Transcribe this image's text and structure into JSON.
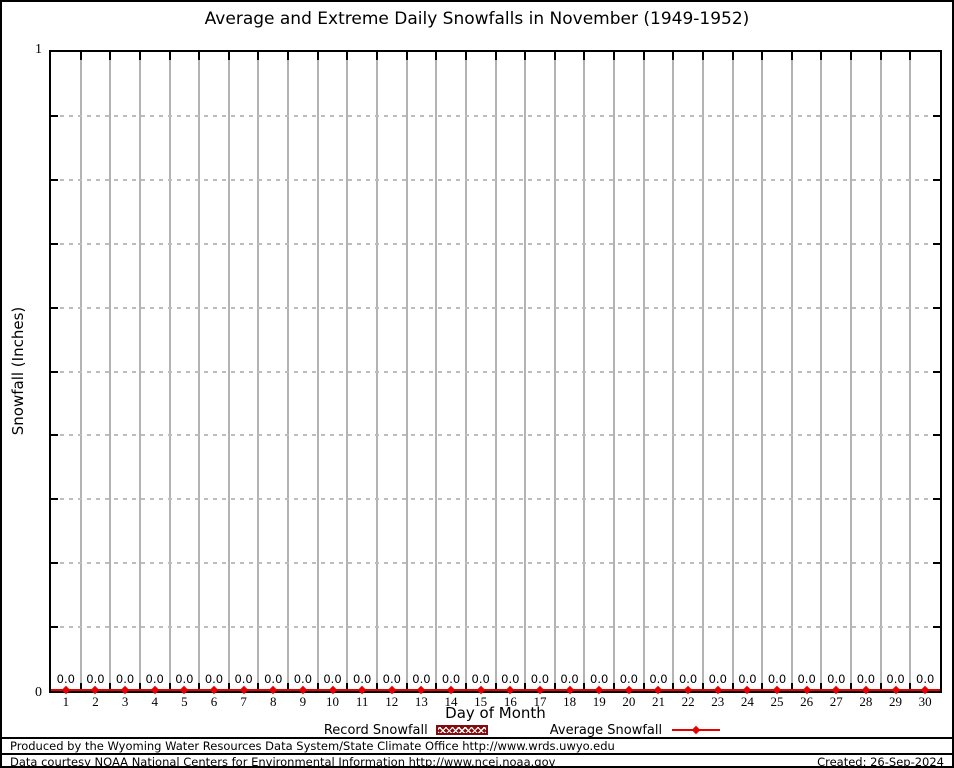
{
  "title": "Average and Extreme Daily Snowfalls in November (1949-1952)",
  "chart_data": {
    "type": "line",
    "title": "Average and Extreme Daily Snowfalls in November (1949-1952)",
    "xlabel": "Day of Month",
    "ylabel": "Snowfall (Inches)",
    "ylim": [
      0,
      1
    ],
    "ytick_top": "1",
    "ytick_bottom": "0",
    "ytick_step": 0.1,
    "grid": "on",
    "legend_position": "bottom-center",
    "x": [
      1,
      2,
      3,
      4,
      5,
      6,
      7,
      8,
      9,
      10,
      11,
      12,
      13,
      14,
      15,
      16,
      17,
      18,
      19,
      20,
      21,
      22,
      23,
      24,
      25,
      26,
      27,
      28,
      29,
      30
    ],
    "series": [
      {
        "name": "Record Snowfall",
        "style": "hatched-box",
        "color": "#8b0f0f",
        "values": [
          0,
          0,
          0,
          0,
          0,
          0,
          0,
          0,
          0,
          0,
          0,
          0,
          0,
          0,
          0,
          0,
          0,
          0,
          0,
          0,
          0,
          0,
          0,
          0,
          0,
          0,
          0,
          0,
          0,
          0
        ]
      },
      {
        "name": "Average Snowfall",
        "style": "line-marker",
        "color": "#e60000",
        "values": [
          0,
          0,
          0,
          0,
          0,
          0,
          0,
          0,
          0,
          0,
          0,
          0,
          0,
          0,
          0,
          0,
          0,
          0,
          0,
          0,
          0,
          0,
          0,
          0,
          0,
          0,
          0,
          0,
          0,
          0
        ]
      }
    ],
    "point_label_format": "0.0",
    "colors": {
      "series_red": "#e60000",
      "record_dark_red": "#8b0f0f",
      "grid_gray": "#b3b3b3",
      "text": "#000000",
      "background": "#ffffff"
    }
  },
  "footer": {
    "line1": "Produced by the Wyoming Water Resources Data System/State Climate Office http://www.wrds.uwyo.edu",
    "line2": "Data courtesy NOAA National Centers for Environmental Information http://www.ncei.noaa.gov",
    "created": "Created: 26-Sep-2024"
  }
}
